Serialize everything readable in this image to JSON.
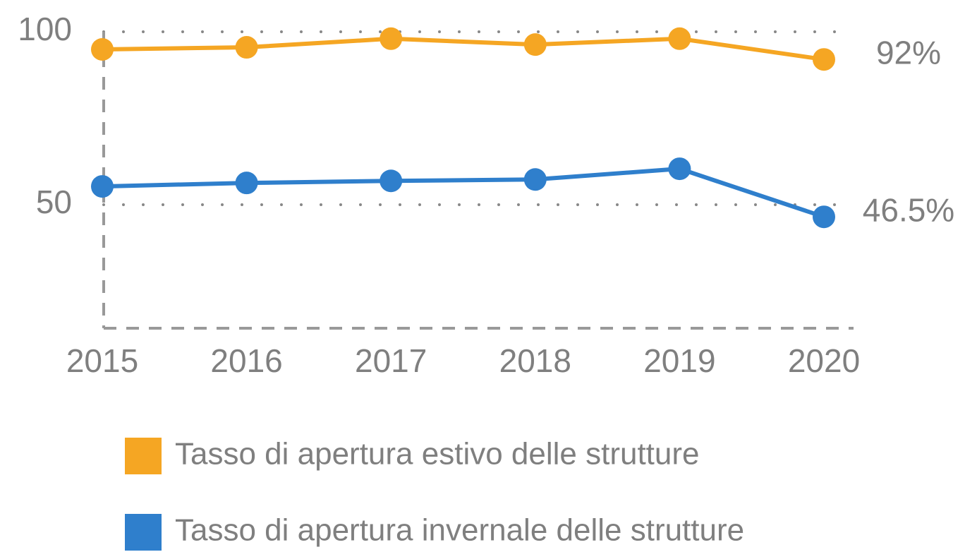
{
  "chart_data": {
    "type": "line",
    "categories": [
      "2015",
      "2016",
      "2017",
      "2018",
      "2019",
      "2020"
    ],
    "series": [
      {
        "name": "Tasso di apertura estivo delle strutture",
        "color": "#f5a623",
        "values": [
          94.9,
          95.5,
          98,
          96.3,
          98,
          92
        ],
        "value_labels": [
          null,
          null,
          null,
          null,
          null,
          "92%"
        ]
      },
      {
        "name": "Tasso di apertura invernale delle strutture",
        "color": "#2f7fcc",
        "values": [
          55.3,
          56.3,
          56.9,
          57.3,
          60.4,
          46.5
        ],
        "value_labels": [
          null,
          null,
          null,
          null,
          null,
          "46.5%"
        ]
      }
    ],
    "ylim": [
      14.3,
      100
    ],
    "yticks": [
      50,
      100
    ],
    "grid": true
  }
}
